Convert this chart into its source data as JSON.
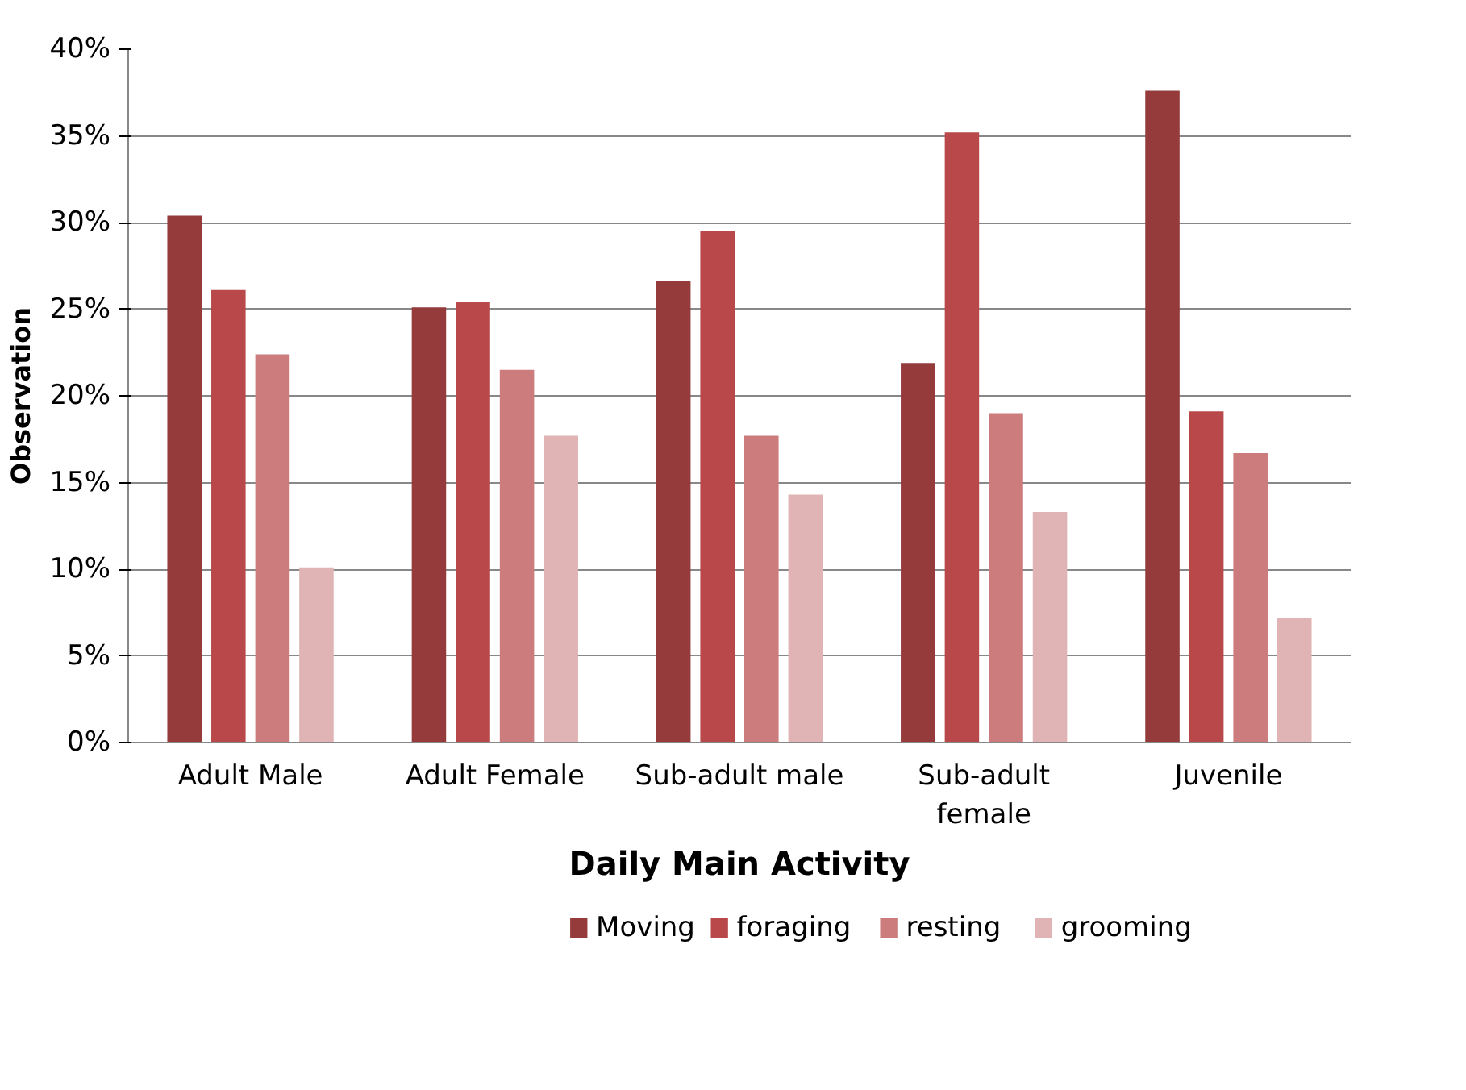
{
  "chart_data": {
    "type": "bar",
    "xlabel": "Daily Main Activity",
    "ylabel": "Observation",
    "categories": [
      "Adult Male",
      "Adult Female",
      "Sub-adult male",
      "Sub-adult female",
      "Juvenile"
    ],
    "series": [
      {
        "name": "Moving",
        "color": "#953b3b",
        "values": [
          30.4,
          25.1,
          26.6,
          21.9,
          37.6
        ]
      },
      {
        "name": "foraging",
        "color": "#b9484a",
        "values": [
          26.1,
          25.4,
          29.5,
          35.2,
          19.1
        ]
      },
      {
        "name": "resting",
        "color": "#cc7c7c",
        "values": [
          22.4,
          21.5,
          17.7,
          19.0,
          16.7
        ]
      },
      {
        "name": "grooming",
        "color": "#e0b4b4",
        "values": [
          10.1,
          17.7,
          14.3,
          13.3,
          7.2
        ]
      }
    ],
    "ylim": [
      0,
      40
    ],
    "yticks": [
      {
        "value": 0,
        "label": "0%"
      },
      {
        "value": 5,
        "label": "5%"
      },
      {
        "value": 10,
        "label": "10%"
      },
      {
        "value": 15,
        "label": "15%"
      },
      {
        "value": 20,
        "label": "20%"
      },
      {
        "value": 25,
        "label": "25%"
      },
      {
        "value": 30,
        "label": "30%"
      },
      {
        "value": 35,
        "label": "35%"
      },
      {
        "value": 40,
        "label": "40%"
      }
    ],
    "grid": "y",
    "legend": "bottom"
  }
}
